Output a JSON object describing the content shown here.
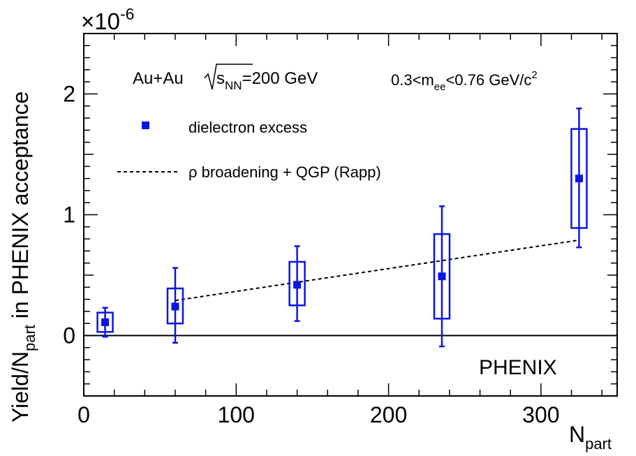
{
  "colors": {
    "data": "#0c14e6",
    "axis": "#000000",
    "theory": "#000000"
  },
  "chart_data": {
    "type": "scatter",
    "xlabel": "N",
    "xlabel_sub": "part",
    "ylabel_pre": "Yield/N",
    "ylabel_sub": "part",
    "ylabel_post": " in PHENIX acceptance",
    "xlim": [
      0,
      350
    ],
    "ylim": [
      -0.5,
      2.5
    ],
    "y_scale_label": "×10",
    "y_scale_exp": "-6",
    "x_ticks": [
      0,
      100,
      200,
      300
    ],
    "x_tick_labels": [
      "0",
      "100",
      "200",
      "300"
    ],
    "y_ticks": [
      0,
      1,
      2
    ],
    "y_tick_labels": [
      "0",
      "1",
      "2"
    ],
    "annotation_system": {
      "pre": "Au+Au ",
      "s": "s",
      "sub": "NN",
      "post": "=200 GeV"
    },
    "annotation_mass": {
      "pre": "0.3<m",
      "sub": "ee",
      "mid": "<0.76 GeV/c",
      "sup": "2"
    },
    "experiment_label": "PHENIX",
    "series": [
      {
        "name": "dielectron excess",
        "kind": "points",
        "points": [
          {
            "x": 14,
            "y": 0.11,
            "stat_lo": -0.01,
            "stat_hi": 0.23,
            "sys_lo": 0.03,
            "sys_hi": 0.19
          },
          {
            "x": 60,
            "y": 0.24,
            "stat_lo": -0.06,
            "stat_hi": 0.56,
            "sys_lo": 0.1,
            "sys_hi": 0.39
          },
          {
            "x": 140,
            "y": 0.42,
            "stat_lo": 0.12,
            "stat_hi": 0.74,
            "sys_lo": 0.25,
            "sys_hi": 0.61
          },
          {
            "x": 235,
            "y": 0.49,
            "stat_lo": -0.09,
            "stat_hi": 1.07,
            "sys_lo": 0.14,
            "sys_hi": 0.84
          },
          {
            "x": 325,
            "y": 1.3,
            "stat_lo": 0.73,
            "stat_hi": 1.88,
            "sys_lo": 0.89,
            "sys_hi": 1.71
          }
        ]
      },
      {
        "name": "ρ broadening + QGP (Rapp)",
        "kind": "line",
        "x": [
          60,
          325
        ],
        "y": [
          0.29,
          0.79
        ]
      }
    ]
  }
}
